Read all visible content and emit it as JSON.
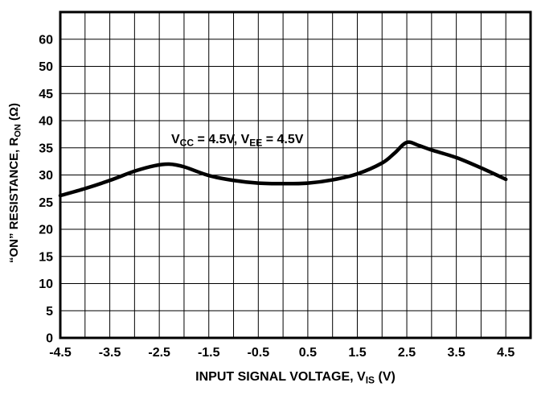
{
  "chart": {
    "background": "#ffffff",
    "grid_color": "#000000",
    "border_color": "#000000",
    "curve_color": "#000000",
    "text_color": "#000000",
    "annotation_parts": [
      {
        "text": "V"
      },
      {
        "text": "CC",
        "sub": true
      },
      {
        "text": " = 4.5V, V"
      },
      {
        "text": "EE",
        "sub": true
      },
      {
        "text": " = 4.5V"
      }
    ],
    "x_title_parts": [
      {
        "text": "INPUT SIGNAL VOLTAGE, V"
      },
      {
        "text": "IS",
        "sub": true
      },
      {
        "text": " (V)"
      }
    ],
    "y_title_parts": [
      {
        "text": "“ON” RESISTANCE, R"
      },
      {
        "text": "ON",
        "sub": true
      },
      {
        "text": " (Ω)"
      }
    ]
  },
  "chart_data": {
    "type": "line",
    "title": "",
    "xlabel": "INPUT SIGNAL VOLTAGE, V_IS (V)",
    "ylabel": "\"ON\" RESISTANCE, R_ON (ohm)",
    "annotation": "V_CC = 4.5V, V_EE = 4.5V",
    "grid": true,
    "legend_position": "none",
    "x_range": [
      -4.5,
      5.0
    ],
    "x_gridline_step": 0.5,
    "x_tick_values": [
      -4.5,
      -3.5,
      -2.5,
      -1.5,
      -0.5,
      0.5,
      1.5,
      2.5,
      3.5,
      4.5
    ],
    "x_tick_labels": [
      "-4.5",
      "-3.5",
      "-2.5",
      "-1.5",
      "-0.5",
      "0.5",
      "1.5",
      "2.5",
      "3.5",
      "4.5"
    ],
    "y_gridline_labels_top_to_bottom": [
      "60",
      "50",
      "45",
      "40",
      "35",
      "30",
      "25",
      "20",
      "15",
      "10",
      "5",
      "0"
    ],
    "y_scale_note": "gridlines equally spaced; step is 5 ohms from 0 to 50 and 10 ohms from 50 to 60",
    "ylim": [
      0,
      60
    ],
    "series": [
      {
        "name": "R_ON vs V_IS at VCC=4.5V, VEE=4.5V",
        "x": [
          -4.5,
          -4.0,
          -3.5,
          -3.0,
          -2.6,
          -2.3,
          -2.0,
          -1.5,
          -1.0,
          -0.5,
          0.0,
          0.5,
          1.0,
          1.5,
          2.0,
          2.25,
          2.5,
          2.75,
          3.0,
          3.5,
          4.0,
          4.5
        ],
        "y": [
          26.2,
          27.5,
          29.0,
          30.7,
          31.7,
          32.0,
          31.5,
          29.9,
          29.0,
          28.5,
          28.4,
          28.5,
          29.1,
          30.2,
          32.2,
          34.0,
          36.0,
          35.4,
          34.6,
          33.2,
          31.3,
          29.2
        ]
      }
    ]
  }
}
